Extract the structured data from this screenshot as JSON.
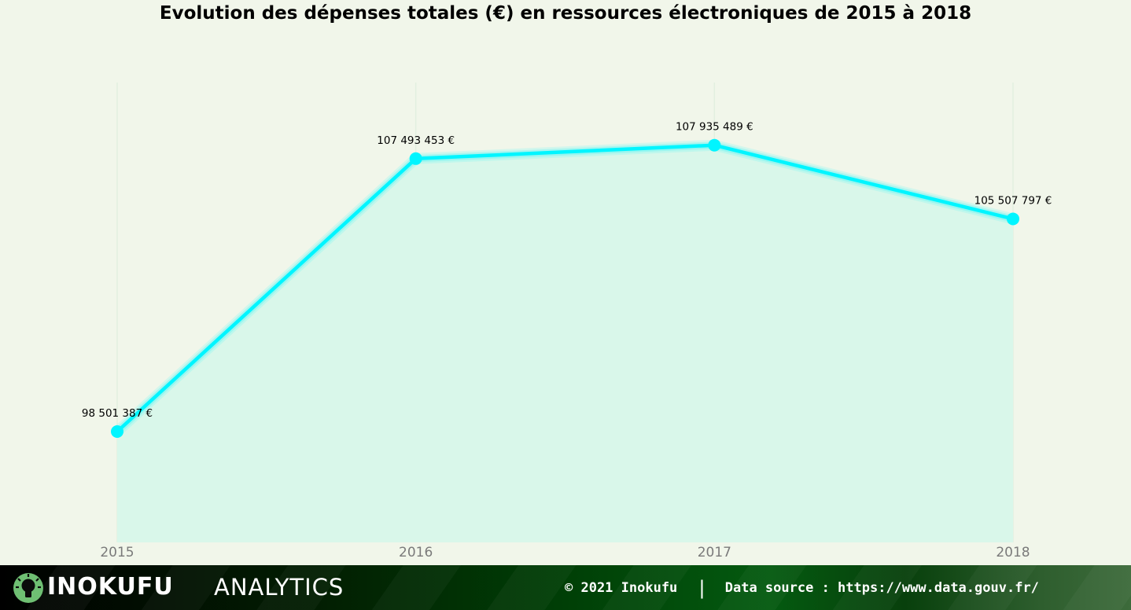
{
  "chart_data": {
    "type": "area",
    "title": "Evolution des dépenses totales (€) en ressources électroniques de 2015 à 2018",
    "xlabel": "",
    "ylabel": "",
    "x": [
      "2015",
      "2016",
      "2017",
      "2018"
    ],
    "values": [
      98501387,
      107493453,
      107935489,
      105507797
    ],
    "data_labels": [
      "98 501 387 €",
      "107 493 453 €",
      "107 935 489 €",
      "105 507 797 €"
    ],
    "ylim": [
      94850000,
      110000000
    ],
    "grid": "vertical",
    "line_color": "#00f5ff",
    "fill_color": "#d9f7ea",
    "background": "#f1f6ea"
  },
  "footer": {
    "brand_name": "INOKUFU",
    "brand_suffix": "ANALYTICS",
    "copyright": "© 2021 Inokufu",
    "separator": "|",
    "source": "Data source : https://www.data.gouv.fr/",
    "logo_icon": "lightbulb-icon"
  }
}
